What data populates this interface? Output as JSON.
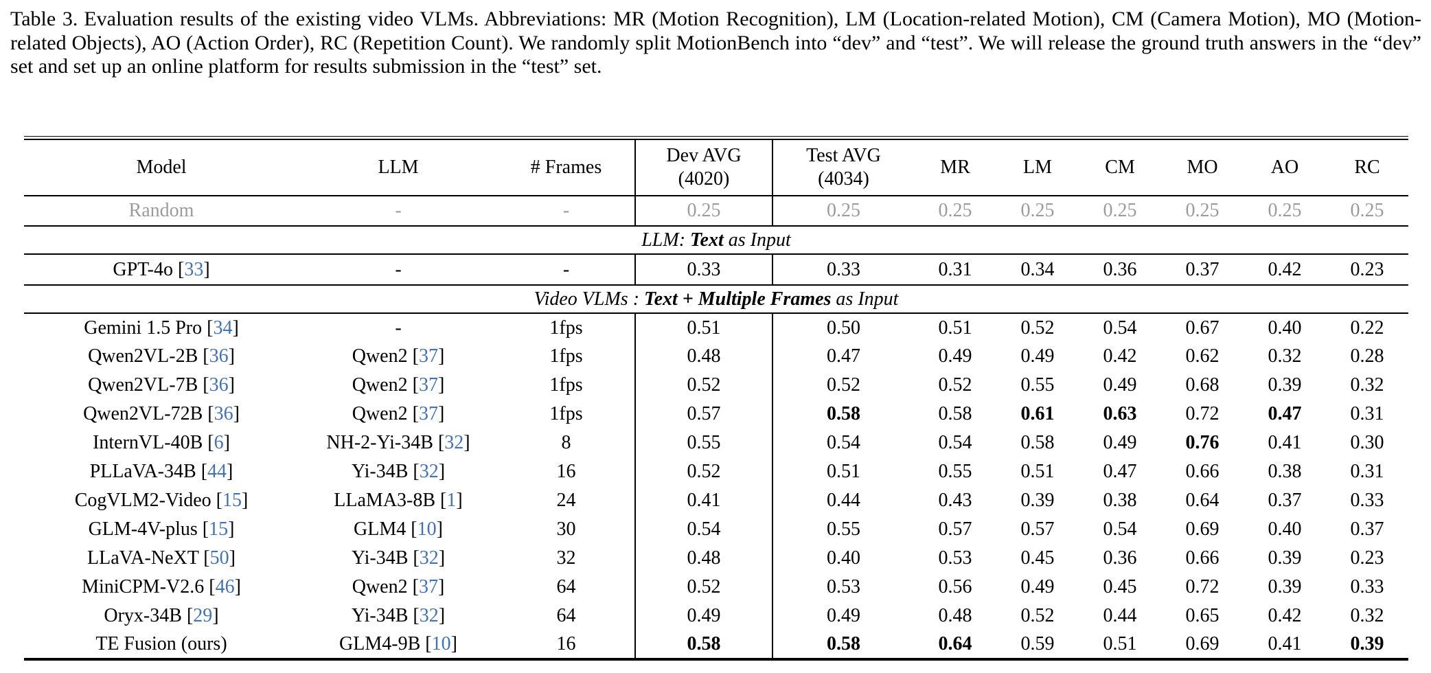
{
  "caption": {
    "label": "Table 3.",
    "text": "Evaluation results of the existing video VLMs. Abbreviations: MR (Motion Recognition), LM (Location-related Motion), CM (Camera Motion), MO (Motion-related Objects), AO (Action Order), RC (Repetition Count). We randomly split MotionBench into “dev” and “test”. We will release the ground truth answers in the “dev” set and set up an online platform for results submission in the “test” set."
  },
  "accent_colors": {
    "citation_blue": "#4072b8",
    "muted_gray": "#9b9b9b"
  },
  "table": {
    "columns": [
      {
        "label": "Model",
        "name": "model"
      },
      {
        "label": "LLM",
        "name": "llm"
      },
      {
        "label": "# Frames",
        "name": "frames",
        "vr": true
      },
      {
        "label": "Dev AVG",
        "sub": "(4020)",
        "name": "dev-avg",
        "vr": true
      },
      {
        "label": "Test AVG",
        "sub": "(4034)",
        "name": "test-avg"
      },
      {
        "label": "MR",
        "name": "mr"
      },
      {
        "label": "LM",
        "name": "lm"
      },
      {
        "label": "CM",
        "name": "cm"
      },
      {
        "label": "MO",
        "name": "mo"
      },
      {
        "label": "AO",
        "name": "ao"
      },
      {
        "label": "RC",
        "name": "rc"
      }
    ],
    "rows": [
      {
        "kind": "data",
        "cls": "row-muted",
        "model": {
          "name": "Random"
        },
        "llm": {
          "name": "-"
        },
        "frames": "-",
        "values": [
          "0.25",
          "0.25",
          "0.25",
          "0.25",
          "0.25",
          "0.25",
          "0.25",
          "0.25"
        ],
        "bold": []
      },
      {
        "kind": "section",
        "prefix": "LLM: ",
        "strong": "Text",
        "suffix": " as Input"
      },
      {
        "kind": "data",
        "cls": "row-single",
        "model": {
          "name": "GPT-4o",
          "cite": "33"
        },
        "llm": {
          "name": "-"
        },
        "frames": "-",
        "values": [
          "0.33",
          "0.33",
          "0.31",
          "0.34",
          "0.36",
          "0.37",
          "0.42",
          "0.23"
        ],
        "bold": []
      },
      {
        "kind": "section",
        "prefix": "Video VLMs : ",
        "strong": "Text + Multiple Frames",
        "suffix": " as Input"
      },
      {
        "kind": "data",
        "cls": "row-data",
        "model": {
          "name": "Gemini 1.5 Pro",
          "cite": "34"
        },
        "llm": {
          "name": "-"
        },
        "frames": "1fps",
        "values": [
          "0.51",
          "0.50",
          "0.51",
          "0.52",
          "0.54",
          "0.67",
          "0.40",
          "0.22"
        ],
        "bold": []
      },
      {
        "kind": "data",
        "cls": "row-data",
        "model": {
          "name": "Qwen2VL-2B",
          "cite": "36"
        },
        "llm": {
          "name": "Qwen2",
          "cite": "37"
        },
        "frames": "1fps",
        "values": [
          "0.48",
          "0.47",
          "0.49",
          "0.49",
          "0.42",
          "0.62",
          "0.32",
          "0.28"
        ],
        "bold": []
      },
      {
        "kind": "data",
        "cls": "row-data",
        "model": {
          "name": "Qwen2VL-7B",
          "cite": "36"
        },
        "llm": {
          "name": "Qwen2",
          "cite": "37"
        },
        "frames": "1fps",
        "values": [
          "0.52",
          "0.52",
          "0.52",
          "0.55",
          "0.49",
          "0.68",
          "0.39",
          "0.32"
        ],
        "bold": []
      },
      {
        "kind": "data",
        "cls": "row-data",
        "model": {
          "name": "Qwen2VL-72B",
          "cite": "36"
        },
        "llm": {
          "name": "Qwen2",
          "cite": "37"
        },
        "frames": "1fps",
        "values": [
          "0.57",
          "0.58",
          "0.58",
          "0.61",
          "0.63",
          "0.72",
          "0.47",
          "0.31"
        ],
        "bold": [
          1,
          3,
          4,
          6
        ]
      },
      {
        "kind": "data",
        "cls": "row-data",
        "model": {
          "name": "InternVL-40B",
          "cite": "6"
        },
        "llm": {
          "name": "NH-2-Yi-34B",
          "cite": "32"
        },
        "frames": "8",
        "values": [
          "0.55",
          "0.54",
          "0.54",
          "0.58",
          "0.49",
          "0.76",
          "0.41",
          "0.30"
        ],
        "bold": [
          5
        ]
      },
      {
        "kind": "data",
        "cls": "row-data",
        "model": {
          "name": "PLLaVA-34B",
          "cite": "44"
        },
        "llm": {
          "name": "Yi-34B",
          "cite": "32"
        },
        "frames": "16",
        "values": [
          "0.52",
          "0.51",
          "0.55",
          "0.51",
          "0.47",
          "0.66",
          "0.38",
          "0.31"
        ],
        "bold": []
      },
      {
        "kind": "data",
        "cls": "row-data",
        "model": {
          "name": "CogVLM2-Video",
          "cite": "15"
        },
        "llm": {
          "name": "LLaMA3-8B",
          "cite": "1"
        },
        "frames": "24",
        "values": [
          "0.41",
          "0.44",
          "0.43",
          "0.39",
          "0.38",
          "0.64",
          "0.37",
          "0.33"
        ],
        "bold": []
      },
      {
        "kind": "data",
        "cls": "row-data",
        "model": {
          "name": "GLM-4V-plus",
          "cite": "15"
        },
        "llm": {
          "name": "GLM4",
          "cite": "10"
        },
        "frames": "30",
        "values": [
          "0.54",
          "0.55",
          "0.57",
          "0.57",
          "0.54",
          "0.69",
          "0.40",
          "0.37"
        ],
        "bold": []
      },
      {
        "kind": "data",
        "cls": "row-data",
        "model": {
          "name": "LLaVA-NeXT",
          "cite": "50"
        },
        "llm": {
          "name": "Yi-34B",
          "cite": "32"
        },
        "frames": "32",
        "values": [
          "0.48",
          "0.40",
          "0.53",
          "0.45",
          "0.36",
          "0.66",
          "0.39",
          "0.23"
        ],
        "bold": []
      },
      {
        "kind": "data",
        "cls": "row-data",
        "model": {
          "name": "MiniCPM-V2.6",
          "cite": "46"
        },
        "llm": {
          "name": "Qwen2",
          "cite": "37"
        },
        "frames": "64",
        "values": [
          "0.52",
          "0.53",
          "0.56",
          "0.49",
          "0.45",
          "0.72",
          "0.39",
          "0.33"
        ],
        "bold": []
      },
      {
        "kind": "data",
        "cls": "row-data",
        "model": {
          "name": "Oryx-34B",
          "cite": "29"
        },
        "llm": {
          "name": "Yi-34B",
          "cite": "32"
        },
        "frames": "64",
        "values": [
          "0.49",
          "0.49",
          "0.48",
          "0.52",
          "0.44",
          "0.65",
          "0.42",
          "0.32"
        ],
        "bold": []
      },
      {
        "kind": "data",
        "cls": "row-data",
        "model": {
          "name": "TE Fusion (ours)"
        },
        "llm": {
          "name": "GLM4-9B",
          "cite": "10"
        },
        "frames": "16",
        "values": [
          "0.58",
          "0.58",
          "0.64",
          "0.59",
          "0.51",
          "0.69",
          "0.41",
          "0.39"
        ],
        "bold": [
          0,
          1,
          2,
          7
        ]
      }
    ]
  }
}
